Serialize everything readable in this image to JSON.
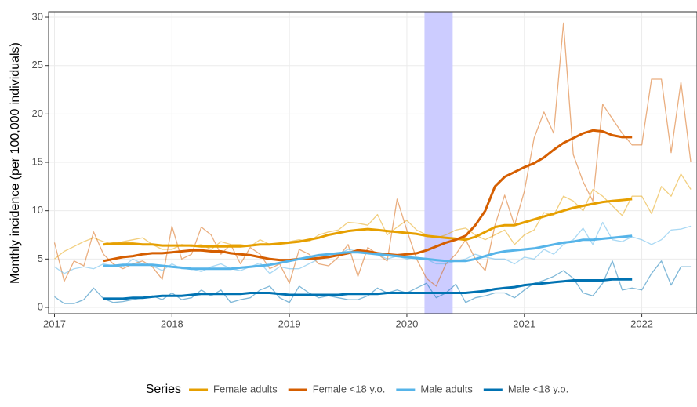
{
  "chart_data": {
    "type": "line",
    "ylabel": "Monthly incidence (per 100,000 individuals)",
    "legend_title": "Series",
    "legend": "bottom",
    "grid": true,
    "xlim": [
      2016.95,
      2022.47
    ],
    "ylim": [
      -0.65,
      30.57
    ],
    "xticks": [
      2017,
      2018,
      2019,
      2020,
      2021,
      2022
    ],
    "yticks": [
      0,
      5,
      10,
      15,
      20,
      25,
      30
    ],
    "highlight": {
      "xlim": [
        2020.15,
        2020.39
      ],
      "color": "#ccccff"
    },
    "x": [
      2017,
      2017.083,
      2017.167,
      2017.25,
      2017.333,
      2017.417,
      2017.5,
      2017.583,
      2017.667,
      2017.75,
      2017.833,
      2017.917,
      2018,
      2018.083,
      2018.167,
      2018.25,
      2018.333,
      2018.417,
      2018.5,
      2018.583,
      2018.667,
      2018.75,
      2018.833,
      2018.917,
      2019,
      2019.083,
      2019.167,
      2019.25,
      2019.333,
      2019.417,
      2019.5,
      2019.583,
      2019.667,
      2019.75,
      2019.833,
      2019.917,
      2020,
      2020.083,
      2020.167,
      2020.25,
      2020.333,
      2020.417,
      2020.5,
      2020.583,
      2020.667,
      2020.75,
      2020.833,
      2020.917,
      2021,
      2021.083,
      2021.167,
      2021.25,
      2021.333,
      2021.417,
      2021.5,
      2021.583,
      2021.667,
      2021.75,
      2021.833,
      2021.917,
      2022,
      2022.083,
      2022.167,
      2022.25,
      2022.333,
      2022.417
    ],
    "series": [
      {
        "name": "Female adults",
        "color": "#E69F00",
        "values": [
          5.0,
          5.8,
          6.3,
          6.8,
          7.2,
          6.8,
          6.5,
          6.8,
          7.0,
          7.2,
          6.5,
          6.0,
          6.0,
          6.5,
          6.3,
          6.5,
          6.0,
          6.8,
          6.5,
          6.5,
          6.3,
          7.0,
          6.5,
          6.5,
          6.8,
          7.0,
          6.8,
          7.5,
          7.8,
          8.0,
          8.8,
          8.7,
          8.5,
          9.6,
          7.5,
          8.3,
          9.0,
          8.0,
          7.5,
          7.2,
          7.5,
          8.0,
          8.2,
          7.5,
          7.0,
          7.5,
          8.0,
          6.5,
          7.5,
          8.0,
          9.8,
          9.5,
          11.5,
          11.0,
          10.0,
          12.2,
          11.5,
          10.5,
          9.5,
          11.5,
          11.5,
          9.7,
          12.5,
          11.5,
          13.8,
          12.2
        ],
        "trend": [
          null,
          null,
          null,
          null,
          null,
          6.5,
          6.6,
          6.6,
          6.6,
          6.5,
          6.5,
          6.4,
          6.4,
          6.4,
          6.4,
          6.3,
          6.3,
          6.3,
          6.3,
          6.3,
          6.4,
          6.5,
          6.5,
          6.6,
          6.7,
          6.8,
          7.0,
          7.2,
          7.5,
          7.7,
          7.9,
          8.0,
          8.1,
          8.0,
          7.9,
          7.8,
          7.7,
          7.6,
          7.4,
          7.3,
          7.2,
          7.1,
          7.0,
          7.3,
          7.8,
          8.3,
          8.5,
          8.5,
          8.8,
          9.1,
          9.4,
          9.7,
          10.0,
          10.3,
          10.5,
          10.7,
          10.9,
          11.0,
          11.1,
          11.2,
          null,
          null,
          null,
          null,
          null,
          null
        ]
      },
      {
        "name": "Female <18 y.o.",
        "color": "#D55E00",
        "values": [
          6.7,
          2.7,
          4.8,
          4.3,
          7.8,
          5.5,
          4.5,
          4.0,
          4.5,
          4.8,
          4.2,
          2.9,
          8.4,
          5.0,
          5.5,
          8.3,
          7.5,
          5.5,
          6.5,
          4.5,
          6.2,
          5.5,
          4.0,
          4.5,
          2.5,
          6.0,
          5.5,
          4.5,
          4.3,
          5.2,
          6.5,
          3.2,
          6.2,
          5.5,
          4.8,
          11.2,
          8.0,
          5.0,
          3.0,
          2.2,
          4.5,
          5.5,
          7.0,
          5.0,
          3.8,
          8.5,
          11.6,
          8.5,
          12.0,
          17.5,
          20.2,
          18.0,
          29.4,
          15.8,
          13.0,
          11.0,
          21.0,
          19.5,
          18.0,
          16.8,
          16.8,
          23.6,
          23.6,
          16.0,
          23.3,
          15.0
        ],
        "trend": [
          null,
          null,
          null,
          null,
          null,
          4.8,
          5.0,
          5.2,
          5.3,
          5.5,
          5.6,
          5.6,
          5.7,
          5.8,
          5.9,
          5.9,
          5.8,
          5.8,
          5.6,
          5.5,
          5.4,
          5.2,
          5.0,
          4.9,
          4.9,
          5.0,
          5.0,
          5.1,
          5.2,
          5.4,
          5.6,
          5.9,
          5.8,
          5.6,
          5.5,
          5.4,
          5.5,
          5.6,
          5.9,
          6.3,
          6.7,
          7.0,
          7.4,
          8.5,
          10.0,
          12.5,
          13.5,
          14.0,
          14.5,
          14.9,
          15.5,
          16.3,
          17.0,
          17.5,
          18.0,
          18.3,
          18.2,
          17.8,
          17.6,
          17.6,
          null,
          null,
          null,
          null,
          null,
          null
        ]
      },
      {
        "name": "Male adults",
        "color": "#56B4E9",
        "values": [
          4.2,
          3.5,
          4.0,
          4.2,
          4.0,
          4.5,
          4.3,
          4.2,
          5.0,
          4.5,
          4.3,
          3.8,
          4.5,
          4.0,
          4.0,
          3.7,
          4.2,
          4.5,
          4.0,
          3.8,
          4.2,
          4.6,
          3.5,
          4.2,
          4.0,
          4.0,
          4.5,
          5.0,
          5.2,
          5.5,
          6.0,
          5.8,
          5.8,
          5.5,
          5.0,
          5.3,
          5.0,
          5.2,
          5.0,
          4.5,
          4.5,
          4.8,
          5.0,
          5.5,
          5.2,
          5.0,
          5.0,
          4.5,
          5.2,
          5.0,
          6.0,
          5.5,
          6.5,
          7.0,
          8.2,
          6.5,
          8.8,
          7.0,
          6.8,
          7.3,
          7.0,
          6.5,
          7.0,
          8.0,
          8.1,
          8.4
        ],
        "trend": [
          null,
          null,
          null,
          null,
          null,
          4.3,
          4.3,
          4.4,
          4.4,
          4.4,
          4.4,
          4.3,
          4.2,
          4.1,
          4.0,
          4.0,
          4.0,
          4.0,
          4.0,
          4.1,
          4.2,
          4.3,
          4.4,
          4.6,
          4.8,
          5.0,
          5.2,
          5.4,
          5.5,
          5.6,
          5.7,
          5.7,
          5.6,
          5.5,
          5.4,
          5.3,
          5.2,
          5.1,
          5.0,
          4.9,
          4.8,
          4.8,
          4.8,
          5.0,
          5.3,
          5.6,
          5.8,
          5.9,
          6.0,
          6.1,
          6.3,
          6.5,
          6.7,
          6.8,
          7.0,
          7.0,
          7.1,
          7.2,
          7.3,
          7.4,
          null,
          null,
          null,
          null,
          null,
          null
        ]
      },
      {
        "name": "Male <18 y.o.",
        "color": "#0072B2",
        "values": [
          1.1,
          0.4,
          0.4,
          0.8,
          2.0,
          0.9,
          0.5,
          0.6,
          0.8,
          1.0,
          1.2,
          0.8,
          1.5,
          0.8,
          1.0,
          1.8,
          1.2,
          1.8,
          0.5,
          0.8,
          1.0,
          1.8,
          2.2,
          1.0,
          0.5,
          2.2,
          1.5,
          1.0,
          1.2,
          1.0,
          0.8,
          0.8,
          1.2,
          2.0,
          1.5,
          1.8,
          1.5,
          2.0,
          2.5,
          1.0,
          1.5,
          2.4,
          0.5,
          1.0,
          1.2,
          1.5,
          1.5,
          1.0,
          1.8,
          2.5,
          2.8,
          3.2,
          3.8,
          3.0,
          1.5,
          1.2,
          2.5,
          4.8,
          1.8,
          2.0,
          1.8,
          3.5,
          4.8,
          2.3,
          4.2,
          4.2
        ],
        "trend": [
          null,
          null,
          null,
          null,
          null,
          0.9,
          0.9,
          0.9,
          1.0,
          1.0,
          1.1,
          1.2,
          1.2,
          1.2,
          1.3,
          1.4,
          1.4,
          1.4,
          1.4,
          1.4,
          1.5,
          1.5,
          1.5,
          1.4,
          1.3,
          1.3,
          1.3,
          1.3,
          1.3,
          1.3,
          1.4,
          1.4,
          1.4,
          1.4,
          1.5,
          1.5,
          1.5,
          1.5,
          1.5,
          1.5,
          1.5,
          1.5,
          1.5,
          1.6,
          1.7,
          1.9,
          2.0,
          2.1,
          2.3,
          2.4,
          2.5,
          2.6,
          2.7,
          2.8,
          2.8,
          2.8,
          2.8,
          2.9,
          2.9,
          2.9,
          null,
          null,
          null,
          null,
          null,
          null
        ]
      }
    ]
  }
}
